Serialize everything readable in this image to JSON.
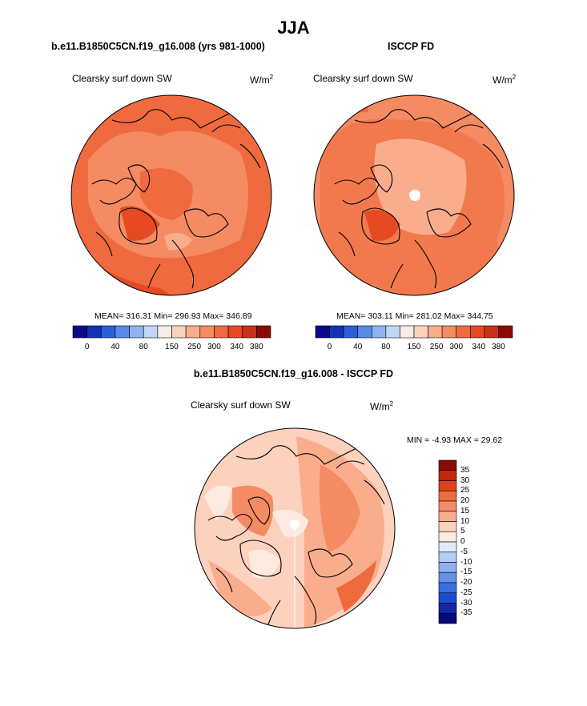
{
  "page": {
    "title": "JJA",
    "diff_title": "b.e11.B1850C5CN.f19_g16.008 - ISCCP FD"
  },
  "panels": [
    {
      "subtitle": "b.e11.B1850C5CN.f19_g16.008 (yrs 981-1000)",
      "variable": "Clearsky surf down SW",
      "units": "W/m",
      "units_exp": "2",
      "stats": "MEAN= 316.31  Min= 296.93  Max= 346.89"
    },
    {
      "subtitle": "ISCCP FD",
      "variable": "Clearsky surf down SW",
      "units": "W/m",
      "units_exp": "2",
      "stats": "MEAN= 303.11  Min= 281.02  Max= 344.75"
    },
    {
      "variable": "Clearsky surf down SW",
      "units": "W/m",
      "units_exp": "2",
      "stats": "MIN =  -4.93 MAX =  29.62"
    }
  ],
  "colorbar_main": {
    "colors": [
      "#0b0b8a",
      "#1432b4",
      "#2a5fdc",
      "#5a8ae8",
      "#8fb2f0",
      "#c2d6f7",
      "#f8ede6",
      "#fcd1bd",
      "#f9ad8d",
      "#f58b63",
      "#ef6a3e",
      "#e54a22",
      "#c83218",
      "#8b0a06"
    ],
    "tick_labels": [
      "0",
      "40",
      "80",
      "150",
      "250",
      "300",
      "340",
      "380"
    ]
  },
  "colorbar_diff": {
    "colors": [
      "#8b0a06",
      "#c0280f",
      "#e0401a",
      "#ef6a3e",
      "#f58b63",
      "#f9ad8d",
      "#fcd1bd",
      "#fdebe2",
      "#dfeafb",
      "#b5cdf4",
      "#8eb0ee",
      "#6591e6",
      "#3c6ee0",
      "#1d4bd0",
      "#1028a8",
      "#070a78"
    ],
    "tick_labels": [
      "35",
      "30",
      "25",
      "20",
      "15",
      "10",
      "5",
      "0",
      "-5",
      "-10",
      "-15",
      "-20",
      "-25",
      "-30",
      "-35"
    ]
  }
}
